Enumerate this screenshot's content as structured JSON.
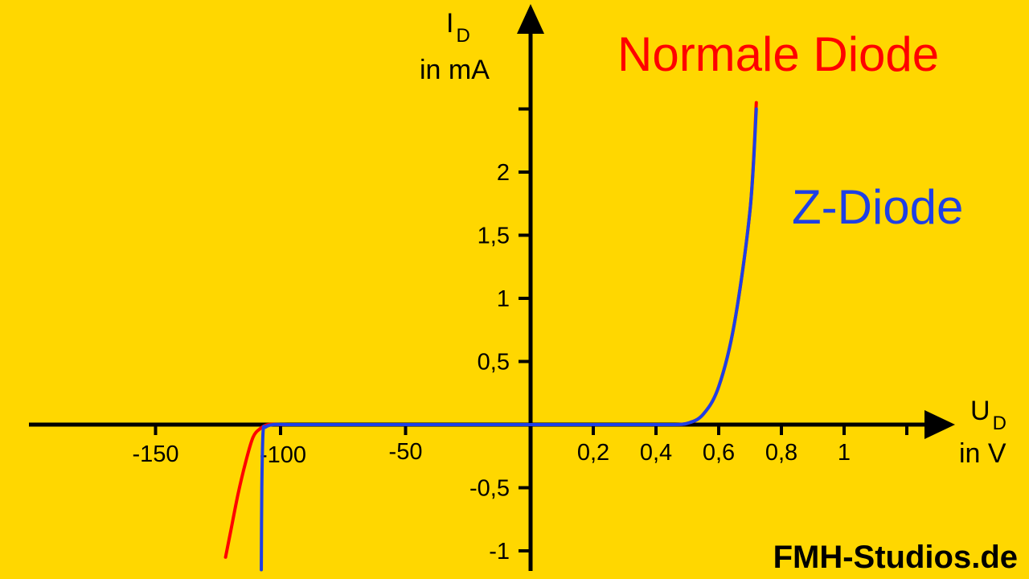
{
  "chart_data": {
    "type": "line",
    "y_axis": {
      "label": "I",
      "label_subscript": "D",
      "unit_label": "in mA",
      "ticks": [
        {
          "value": 2,
          "label": "2"
        },
        {
          "value": 1.5,
          "label": "1,5"
        },
        {
          "value": 1,
          "label": "1"
        },
        {
          "value": 0.5,
          "label": "0,5"
        },
        {
          "value": -0.5,
          "label": "-0,5"
        },
        {
          "value": -1,
          "label": "-1"
        }
      ],
      "extra_tick_values": [
        2.5
      ]
    },
    "x_axis": {
      "label": "U",
      "label_subscript": "D",
      "unit_label": "in V",
      "negative_ticks": [
        {
          "value": -150,
          "label": "-150"
        },
        {
          "value": -100,
          "label": "-100"
        },
        {
          "value": -50,
          "label": "-50"
        }
      ],
      "positive_ticks": [
        {
          "value": 0.2,
          "label": "0,2"
        },
        {
          "value": 0.4,
          "label": "0,4"
        },
        {
          "value": 0.6,
          "label": "0,6"
        },
        {
          "value": 0.8,
          "label": "0,8"
        },
        {
          "value": 1,
          "label": "1"
        }
      ],
      "extra_positive_tick_values": [
        1.2
      ]
    },
    "series": [
      {
        "name": "Normale Diode",
        "color": "#FF0000",
        "forward": [
          [
            0.45,
            0
          ],
          [
            0.5,
            0.01
          ],
          [
            0.55,
            0.08
          ],
          [
            0.6,
            0.3
          ],
          [
            0.65,
            0.8
          ],
          [
            0.7,
            1.7
          ],
          [
            0.72,
            2.55
          ]
        ],
        "reverse": [
          [
            -100,
            0
          ],
          [
            -105,
            0
          ],
          [
            -108,
            -0.03
          ],
          [
            -111,
            -0.1
          ],
          [
            -114,
            -0.3
          ],
          [
            -117,
            -0.55
          ],
          [
            -120,
            -0.85
          ],
          [
            -122,
            -1.05
          ]
        ]
      },
      {
        "name": "Z-Diode",
        "color": "#1E3FE6",
        "forward": [
          [
            0.45,
            0
          ],
          [
            0.5,
            0.01
          ],
          [
            0.55,
            0.08
          ],
          [
            0.6,
            0.3
          ],
          [
            0.65,
            0.8
          ],
          [
            0.7,
            1.7
          ],
          [
            0.72,
            2.5
          ]
        ],
        "reverse": [
          [
            -97,
            0
          ],
          [
            -103,
            0
          ],
          [
            -106,
            -0.02
          ],
          [
            -107,
            -0.06
          ],
          [
            -107.5,
            -0.5
          ],
          [
            -107.7,
            -1.15
          ]
        ]
      }
    ],
    "legend": [
      {
        "label": "Normale Diode",
        "color": "#FF0000",
        "position": "top-right"
      },
      {
        "label": "Z-Diode",
        "color": "#1E3FE6",
        "position": "right"
      }
    ]
  },
  "watermark": "FMH-Studios.de"
}
